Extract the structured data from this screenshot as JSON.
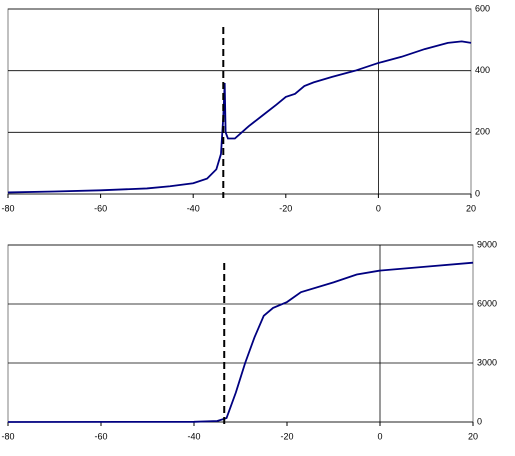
{
  "chart_data": [
    {
      "type": "line",
      "x": [
        -80,
        -70,
        -60,
        -50,
        -45,
        -40,
        -37,
        -35,
        -34,
        -33.5,
        -33.2,
        -33,
        -32.5,
        -31,
        -28,
        -25,
        -22,
        -20,
        -18,
        -16,
        -14,
        -10,
        -5,
        0,
        5,
        10,
        15,
        18,
        20
      ],
      "series": [
        {
          "color": "#000080",
          "values": [
            5,
            8,
            12,
            18,
            25,
            35,
            50,
            80,
            130,
            250,
            360,
            200,
            180,
            180,
            220,
            255,
            290,
            315,
            325,
            350,
            362,
            380,
            400,
            425,
            445,
            470,
            490,
            495,
            490
          ]
        }
      ],
      "xlim": [
        -80,
        20
      ],
      "xticks": [
        -80,
        -60,
        -40,
        -20,
        0,
        20
      ],
      "ylim": [
        0,
        600
      ],
      "yticks": [
        0,
        200,
        400,
        600
      ],
      "grid": true,
      "y_axis_crossing": 0,
      "reference_x": -33.5
    },
    {
      "type": "line",
      "x": [
        -80,
        -40,
        -35,
        -33,
        -31,
        -29,
        -27,
        -25,
        -23,
        -20,
        -17,
        -10,
        -5,
        0,
        10,
        20
      ],
      "series": [
        {
          "color": "#000080",
          "values": [
            0,
            10,
            50,
            200,
            1500,
            3000,
            4300,
            5400,
            5800,
            6100,
            6600,
            7100,
            7500,
            7700,
            7900,
            8100
          ]
        }
      ],
      "xlim": [
        -80,
        20
      ],
      "xticks": [
        -80,
        -60,
        -40,
        -20,
        0,
        20
      ],
      "ylim": [
        0,
        9000
      ],
      "yticks": [
        0,
        3000,
        6000,
        9000
      ],
      "grid": true,
      "y_axis_crossing": 0,
      "reference_x": -33.5
    }
  ]
}
